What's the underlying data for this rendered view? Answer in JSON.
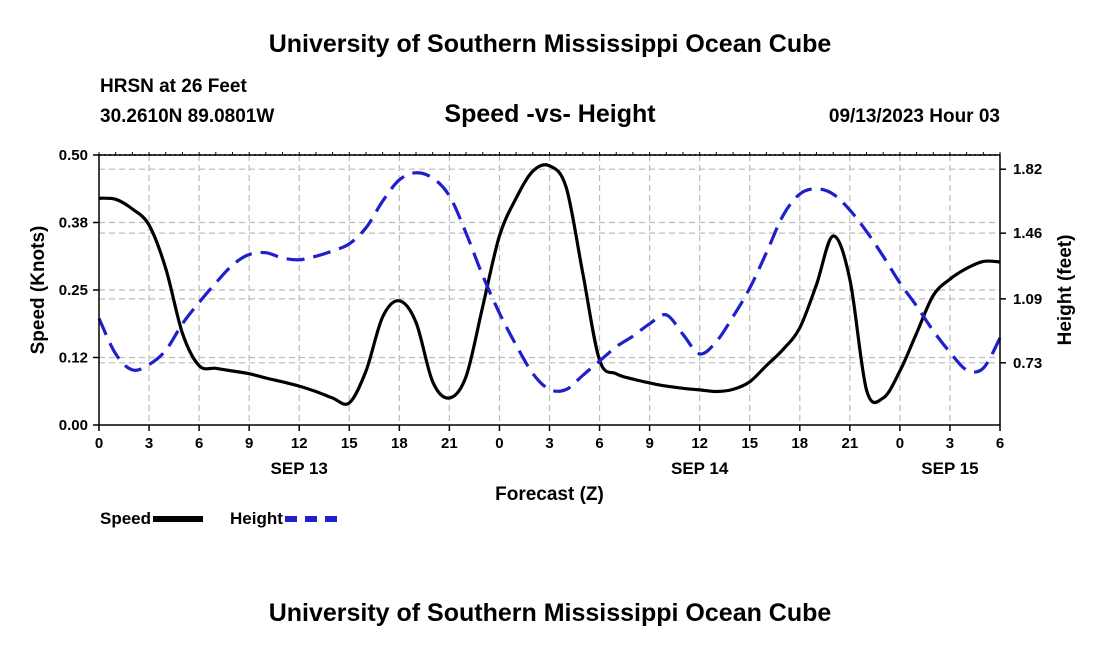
{
  "header": {
    "title": "University of Southern Mississippi Ocean Cube",
    "station": "HRSN at 26 Feet",
    "coords": "30.2610N  89.0801W",
    "subtitle": "Speed -vs- Height",
    "datetime": "09/13/2023 Hour 03",
    "footer_title": "University of Southern Mississippi Ocean Cube"
  },
  "colors": {
    "speed": "#000000",
    "height": "#1f1fcc",
    "grid": "#bbbbbb"
  },
  "chart_data": {
    "type": "line",
    "title": "Speed -vs- Height",
    "xlabel": "Forecast (Z)",
    "ylabel": "Speed (Knots)",
    "y2label": "Height (feet)",
    "x_range": [
      0,
      54
    ],
    "x_tick_step": 3,
    "x_tick_labels": [
      "0",
      "3",
      "6",
      "9",
      "12",
      "15",
      "18",
      "21",
      "0",
      "3",
      "6",
      "9",
      "12",
      "15",
      "18",
      "21",
      "0",
      "3",
      "6"
    ],
    "date_labels": [
      {
        "label": "SEP 13",
        "hour": 12
      },
      {
        "label": "SEP 14",
        "hour": 36
      },
      {
        "label": "SEP 15",
        "hour": 51
      }
    ],
    "ylim": [
      0,
      0.5
    ],
    "y_ticks": [
      "0.00",
      "0.12",
      "0.25",
      "0.38",
      "0.50"
    ],
    "y2lim": [
      0.38,
      1.9
    ],
    "y2_ticks": [
      "0.73",
      "1.09",
      "1.46",
      "1.82"
    ],
    "legend": [
      {
        "name": "Speed",
        "style": "solid"
      },
      {
        "name": "Height",
        "style": "dashed"
      }
    ],
    "series": [
      {
        "name": "Speed",
        "axis": "left",
        "x": [
          0,
          1,
          2,
          3,
          4,
          5,
          6,
          7,
          8,
          9,
          10,
          11,
          12,
          13,
          14,
          15,
          16,
          17,
          18,
          19,
          20,
          21,
          22,
          23,
          24,
          25,
          26,
          27,
          28,
          29,
          30,
          31,
          32,
          33,
          34,
          35,
          36,
          37,
          38,
          39,
          40,
          41,
          42,
          43,
          44,
          45,
          46,
          47,
          48,
          49,
          50,
          51,
          52,
          53,
          54
        ],
        "values": [
          0.42,
          0.418,
          0.4,
          0.37,
          0.29,
          0.17,
          0.11,
          0.105,
          0.1,
          0.095,
          0.087,
          0.08,
          0.072,
          0.062,
          0.05,
          0.041,
          0.1,
          0.2,
          0.23,
          0.19,
          0.08,
          0.05,
          0.09,
          0.22,
          0.35,
          0.42,
          0.47,
          0.48,
          0.44,
          0.28,
          0.12,
          0.095,
          0.085,
          0.078,
          0.072,
          0.068,
          0.065,
          0.062,
          0.066,
          0.08,
          0.11,
          0.14,
          0.18,
          0.26,
          0.35,
          0.27,
          0.065,
          0.05,
          0.1,
          0.17,
          0.24,
          0.27,
          0.29,
          0.303,
          0.302
        ]
      },
      {
        "name": "Height",
        "axis": "right",
        "x": [
          0,
          1,
          2,
          3,
          4,
          5,
          6,
          7,
          8,
          9,
          10,
          11,
          12,
          13,
          14,
          15,
          16,
          17,
          18,
          19,
          20,
          21,
          22,
          23,
          24,
          25,
          26,
          27,
          28,
          29,
          30,
          31,
          32,
          33,
          34,
          35,
          36,
          37,
          38,
          39,
          40,
          41,
          42,
          43,
          44,
          45,
          46,
          47,
          48,
          49,
          50,
          51,
          52,
          53,
          54
        ],
        "values": [
          0.98,
          0.78,
          0.69,
          0.72,
          0.8,
          0.95,
          1.07,
          1.18,
          1.28,
          1.34,
          1.35,
          1.32,
          1.31,
          1.33,
          1.36,
          1.4,
          1.49,
          1.64,
          1.76,
          1.8,
          1.77,
          1.67,
          1.46,
          1.22,
          1.01,
          0.83,
          0.67,
          0.58,
          0.58,
          0.66,
          0.74,
          0.82,
          0.88,
          0.95,
          1.0,
          0.89,
          0.78,
          0.85,
          0.99,
          1.15,
          1.35,
          1.56,
          1.68,
          1.71,
          1.68,
          1.59,
          1.47,
          1.33,
          1.18,
          1.05,
          0.91,
          0.79,
          0.69,
          0.7,
          0.87
        ]
      }
    ]
  }
}
